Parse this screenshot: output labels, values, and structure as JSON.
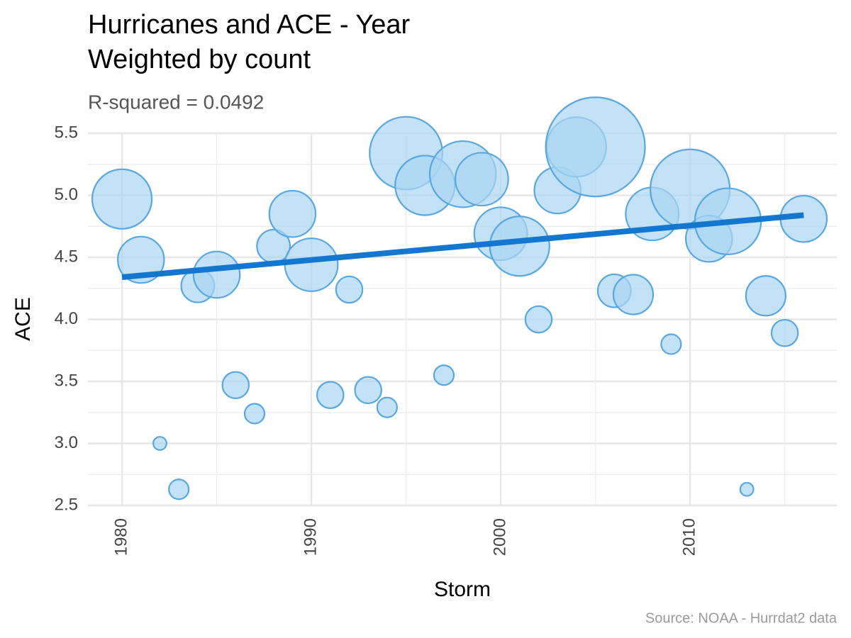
{
  "chart_data": {
    "type": "scatter",
    "title": [
      "Hurricanes and ACE - Year",
      "Weighted by count"
    ],
    "subtitle": "R-squared =  0.0492",
    "caption": "Source: NOAA - Hurrdat2 data",
    "xlabel": "Storm",
    "ylabel": "ACE",
    "x": [
      1980,
      1981,
      1982,
      1983,
      1984,
      1985,
      1986,
      1987,
      1988,
      1989,
      1990,
      1991,
      1992,
      1993,
      1994,
      1995,
      1996,
      1997,
      1998,
      1999,
      2000,
      2001,
      2002,
      2003,
      2004,
      2005,
      2006,
      2007,
      2008,
      2009,
      2010,
      2011,
      2012,
      2013,
      2014,
      2015,
      2016
    ],
    "values": [
      4.97,
      4.48,
      3.0,
      2.63,
      4.27,
      4.36,
      3.47,
      3.24,
      4.59,
      4.85,
      4.44,
      3.39,
      4.24,
      3.43,
      3.29,
      5.34,
      5.08,
      3.55,
      5.17,
      5.13,
      4.69,
      4.59,
      4.0,
      5.04,
      5.39,
      5.39,
      4.23,
      4.2,
      4.85,
      3.8,
      5.05,
      4.65,
      4.79,
      2.63,
      4.19,
      3.89,
      4.81
    ],
    "sizes": [
      9,
      7,
      2,
      3,
      5,
      7,
      4,
      3,
      5,
      7,
      8,
      4,
      4,
      4,
      3,
      11,
      9,
      3,
      10,
      8,
      8,
      9,
      4,
      7,
      9,
      15,
      5,
      6,
      8,
      3,
      12,
      7,
      10,
      2,
      6,
      4,
      7
    ],
    "color": "#a9d5f2",
    "edge_color": "#5aa7df",
    "trend": {
      "x": [
        1980,
        2016
      ],
      "values": [
        4.34,
        4.84
      ],
      "color": "#1477cf"
    },
    "xlim": [
      1978.2,
      2017.75
    ],
    "ylim": [
      2.5,
      5.5
    ],
    "xticks": [
      1980,
      1990,
      2000,
      2010
    ],
    "yticks": [
      {
        "value": 2.5,
        "label": "2.5"
      },
      {
        "value": 3,
        "label": "3.0"
      },
      {
        "value": 3.5,
        "label": "3.5"
      },
      {
        "value": 4,
        "label": "4.0"
      },
      {
        "value": 4.5,
        "label": "4.5"
      },
      {
        "value": 5,
        "label": "5.0"
      },
      {
        "value": 5.5,
        "label": "5.5"
      }
    ],
    "grid": true
  }
}
